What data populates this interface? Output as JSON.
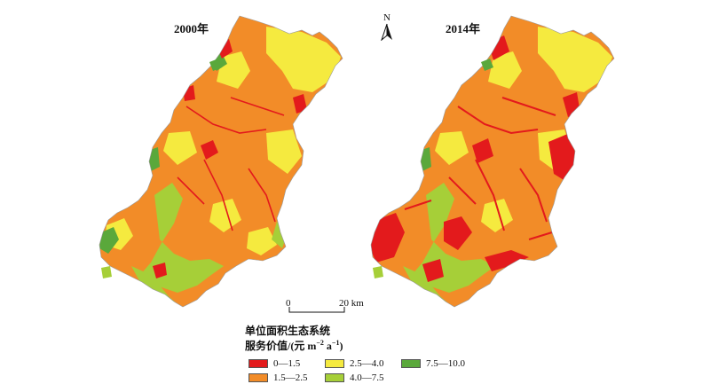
{
  "panels": [
    {
      "title": "2000年"
    },
    {
      "title": "2014年"
    }
  ],
  "north_arrow": {
    "label": "N"
  },
  "scale_bar": {
    "start": "0",
    "end": "20 km"
  },
  "legend": {
    "title_line1": "单位面积生态系统",
    "title_line2_main": "服务价值/(元 m",
    "title_sup1": "−2",
    "title_mid": " a",
    "title_sup2": "−1",
    "title_end": ")",
    "items": [
      {
        "label": "0—1.5",
        "color": "#e31a1c"
      },
      {
        "label": "1.5—2.5",
        "color": "#f28c28"
      },
      {
        "label": "2.5—4.0",
        "color": "#f5ea3f"
      },
      {
        "label": "4.0—7.5",
        "color": "#a6cf38"
      },
      {
        "label": "7.5—10.0",
        "color": "#5aa83b"
      }
    ]
  },
  "colors": {
    "class_1": "#e31a1c",
    "class_2": "#f28c28",
    "class_3": "#f5ea3f",
    "class_4": "#a6cf38",
    "class_5": "#5aa83b"
  }
}
